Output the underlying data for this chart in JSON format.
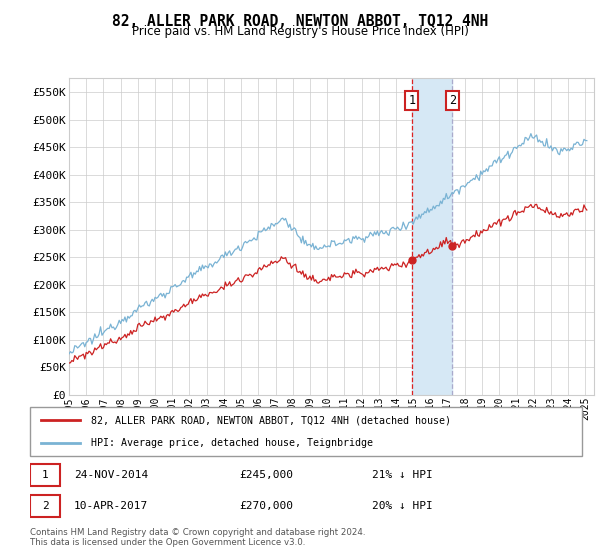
{
  "title": "82, ALLER PARK ROAD, NEWTON ABBOT, TQ12 4NH",
  "subtitle": "Price paid vs. HM Land Registry's House Price Index (HPI)",
  "ylim": [
    0,
    575000
  ],
  "yticks": [
    0,
    50000,
    100000,
    150000,
    200000,
    250000,
    300000,
    350000,
    400000,
    450000,
    500000,
    550000
  ],
  "ytick_labels": [
    "£0",
    "£50K",
    "£100K",
    "£150K",
    "£200K",
    "£250K",
    "£300K",
    "£350K",
    "£400K",
    "£450K",
    "£500K",
    "£550K"
  ],
  "sale1_date": 2014.92,
  "sale1_price": 245000,
  "sale1_label": "1",
  "sale2_date": 2017.27,
  "sale2_price": 270000,
  "sale2_label": "2",
  "hpi_color": "#7ab3d4",
  "price_color": "#cc2222",
  "shading_color": "#d6e8f5",
  "legend_label_price": "82, ALLER PARK ROAD, NEWTON ABBOT, TQ12 4NH (detached house)",
  "legend_label_hpi": "HPI: Average price, detached house, Teignbridge",
  "footnote": "Contains HM Land Registry data © Crown copyright and database right 2024.\nThis data is licensed under the Open Government Licence v3.0.",
  "xstart": 1995,
  "xend": 2025
}
